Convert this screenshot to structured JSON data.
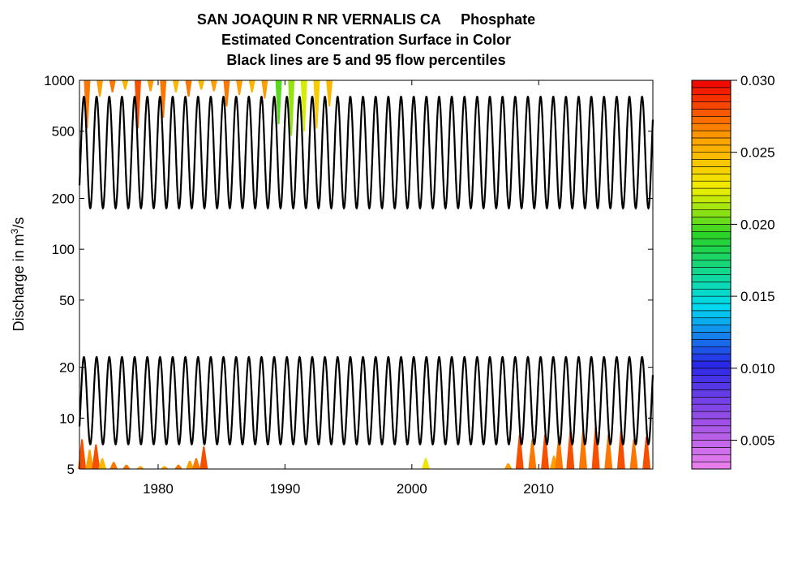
{
  "title_lines": [
    "SAN JOAQUIN R NR VERNALIS CA     Phosphate",
    "Estimated Concentration Surface in Color",
    "Black lines are 5 and 95 flow percentiles"
  ],
  "chart_data": {
    "type": "heatmap",
    "ylabel": "Discharge in m³/s",
    "ylabel_base": "Discharge in m",
    "ylabel_sup": "3",
    "ylabel_tail": "/s",
    "y_scale": "log",
    "ylim": [
      5,
      1000
    ],
    "y_ticks": [
      5,
      10,
      20,
      50,
      100,
      200,
      500,
      1000
    ],
    "x_ticks": [
      1980,
      1990,
      2000,
      2010
    ],
    "xlim": [
      1973.8,
      2019.0
    ],
    "percentile_lines": [
      {
        "name": "95th flow percentile",
        "min": 175,
        "max": 800,
        "cycle_years": 1
      },
      {
        "name": "5th flow percentile",
        "min": 7,
        "max": 23,
        "cycle_years": 1
      }
    ],
    "colorbar": {
      "min": 0.003,
      "max": 0.03,
      "ticks": [
        "0.005",
        "0.010",
        "0.015",
        "0.020",
        "0.025",
        "0.030"
      ],
      "tick_values": [
        0.005,
        0.01,
        0.015,
        0.02,
        0.025,
        0.03
      ]
    },
    "high_flow_spikes": [
      {
        "year": 1974.4,
        "bottom": 520,
        "conc": 0.027
      },
      {
        "year": 1975.4,
        "bottom": 800,
        "conc": 0.026
      },
      {
        "year": 1976.4,
        "bottom": 850,
        "conc": 0.027
      },
      {
        "year": 1977.4,
        "bottom": 880,
        "conc": 0.025
      },
      {
        "year": 1978.4,
        "bottom": 520,
        "conc": 0.028
      },
      {
        "year": 1979.4,
        "bottom": 860,
        "conc": 0.026
      },
      {
        "year": 1980.4,
        "bottom": 600,
        "conc": 0.027
      },
      {
        "year": 1981.4,
        "bottom": 850,
        "conc": 0.025
      },
      {
        "year": 1982.4,
        "bottom": 800,
        "conc": 0.027
      },
      {
        "year": 1983.4,
        "bottom": 880,
        "conc": 0.025
      },
      {
        "year": 1984.4,
        "bottom": 860,
        "conc": 0.026
      },
      {
        "year": 1985.4,
        "bottom": 700,
        "conc": 0.027
      },
      {
        "year": 1986.4,
        "bottom": 820,
        "conc": 0.026
      },
      {
        "year": 1987.4,
        "bottom": 850,
        "conc": 0.025
      },
      {
        "year": 1988.4,
        "bottom": 780,
        "conc": 0.026
      },
      {
        "year": 1989.5,
        "bottom": 550,
        "conc": 0.02
      },
      {
        "year": 1990.5,
        "bottom": 470,
        "conc": 0.021
      },
      {
        "year": 1991.5,
        "bottom": 500,
        "conc": 0.022
      },
      {
        "year": 1992.5,
        "bottom": 520,
        "conc": 0.024
      },
      {
        "year": 1993.5,
        "bottom": 700,
        "conc": 0.025
      }
    ],
    "low_flow_spikes": [
      {
        "year": 1974.0,
        "top": 7.5,
        "conc": 0.028
      },
      {
        "year": 1974.6,
        "top": 6.5,
        "conc": 0.026
      },
      {
        "year": 1975.1,
        "top": 7.0,
        "conc": 0.028
      },
      {
        "year": 1975.6,
        "top": 5.8,
        "conc": 0.025
      },
      {
        "year": 1976.5,
        "top": 5.5,
        "conc": 0.027
      },
      {
        "year": 1977.5,
        "top": 5.3,
        "conc": 0.027
      },
      {
        "year": 1978.6,
        "top": 5.2,
        "conc": 0.026
      },
      {
        "year": 1980.5,
        "top": 5.2,
        "conc": 0.026
      },
      {
        "year": 1981.6,
        "top": 5.3,
        "conc": 0.027
      },
      {
        "year": 1982.5,
        "top": 5.6,
        "conc": 0.026
      },
      {
        "year": 1983.0,
        "top": 5.8,
        "conc": 0.027
      },
      {
        "year": 1983.6,
        "top": 6.8,
        "conc": 0.028
      },
      {
        "year": 2001.1,
        "top": 5.8,
        "conc": 0.023
      },
      {
        "year": 2007.6,
        "top": 5.4,
        "conc": 0.026
      },
      {
        "year": 2008.5,
        "top": 8.0,
        "conc": 0.028
      },
      {
        "year": 2009.5,
        "top": 7.5,
        "conc": 0.027
      },
      {
        "year": 2010.5,
        "top": 8.0,
        "conc": 0.028
      },
      {
        "year": 2011.2,
        "top": 6.0,
        "conc": 0.026
      },
      {
        "year": 2011.6,
        "top": 7.8,
        "conc": 0.027
      },
      {
        "year": 2012.5,
        "top": 8.5,
        "conc": 0.028
      },
      {
        "year": 2013.5,
        "top": 8.5,
        "conc": 0.027
      },
      {
        "year": 2014.5,
        "top": 9.0,
        "conc": 0.028
      },
      {
        "year": 2015.5,
        "top": 8.0,
        "conc": 0.027
      },
      {
        "year": 2016.5,
        "top": 8.5,
        "conc": 0.028
      },
      {
        "year": 2017.5,
        "top": 7.5,
        "conc": 0.027
      },
      {
        "year": 2018.5,
        "top": 7.8,
        "conc": 0.028
      }
    ]
  }
}
